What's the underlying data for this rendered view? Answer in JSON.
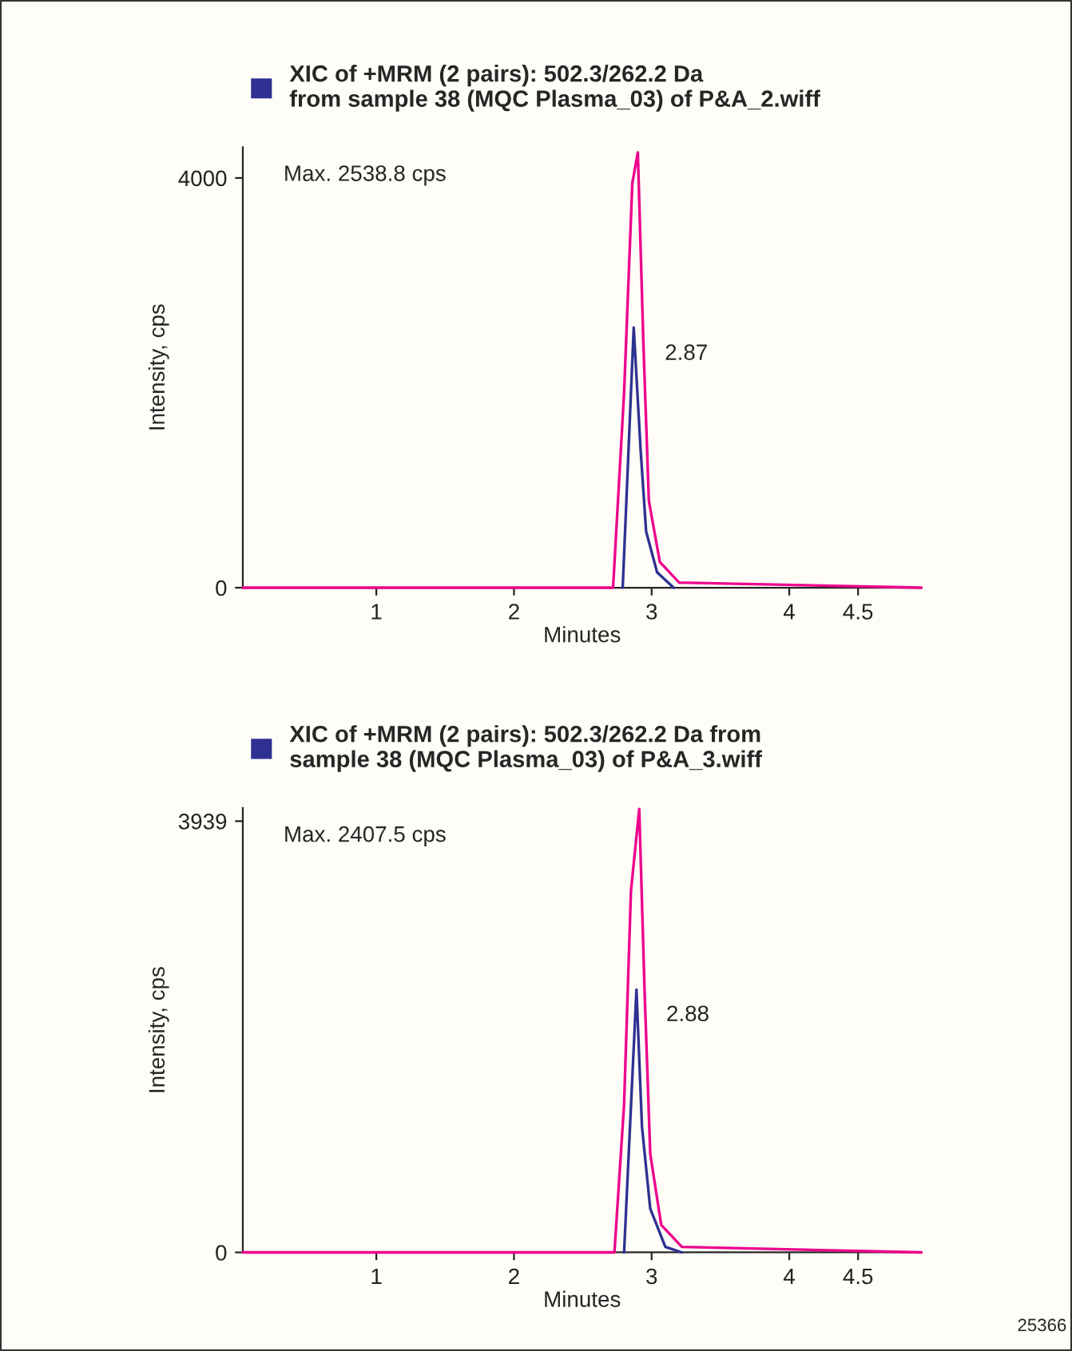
{
  "chart_data": [
    {
      "type": "line",
      "xlabel": "Minutes",
      "ylabel": "Intensity, cps",
      "xlim": [
        0.03,
        4.96
      ],
      "ylim": [
        0,
        4300
      ],
      "xticks": [
        1,
        2,
        3,
        4,
        4.5
      ],
      "yticks": [
        0,
        4000
      ],
      "legend": "top left",
      "grid": false,
      "marker": "none",
      "line_style": "solid",
      "annotations": [
        "Max. 2538.8 cps",
        {
          "text": "2.87",
          "x": 2.87,
          "y": 2540
        }
      ],
      "series": [
        {
          "name": "XIC of +MRM (2 pairs): 502.3/262.2 Da\nfrom sample 38 (MQC Plasma_03) of P&A_2.wiff",
          "color": "#2e3192",
          "x": [
            2.79,
            2.87,
            2.92,
            2.96,
            3.04,
            3.16
          ],
          "values": [
            0,
            2540,
            1350,
            550,
            150,
            0
          ]
        },
        {
          "color": "#ec008c",
          "x": [
            0.03,
            2.72,
            2.8,
            2.86,
            2.9,
            2.94,
            2.98,
            3.06,
            3.2,
            4.96
          ],
          "values": [
            0,
            0,
            1900,
            3950,
            4250,
            2400,
            850,
            250,
            50,
            0
          ]
        }
      ]
    },
    {
      "type": "line",
      "xlabel": "Minutes",
      "ylabel": "Intensity, cps",
      "xlim": [
        0.03,
        4.96
      ],
      "ylim": [
        0,
        4060
      ],
      "xticks": [
        1,
        2,
        3,
        4,
        4.5
      ],
      "yticks": [
        0,
        3939
      ],
      "legend": "top left",
      "grid": false,
      "marker": "none",
      "line_style": "solid",
      "annotations": [
        "Max. 2407.5 cps",
        {
          "text": "2.88",
          "x": 2.88,
          "y": 2408
        },
        "25366"
      ],
      "series": [
        {
          "name": "XIC of +MRM (2 pairs): 502.3/262.2 Da from\nsample 38 (MQC Plasma_03) of P&A_3.wiff",
          "color": "#2e3192",
          "x": [
            2.8,
            2.89,
            2.93,
            2.99,
            3.1,
            3.22
          ],
          "values": [
            0,
            2400,
            1150,
            400,
            50,
            0
          ]
        },
        {
          "color": "#ec008c",
          "x": [
            0.03,
            2.73,
            2.8,
            2.85,
            2.91,
            2.95,
            2.99,
            3.07,
            3.22,
            4.96
          ],
          "values": [
            0,
            0,
            1350,
            3300,
            4050,
            2350,
            900,
            250,
            50,
            0
          ]
        }
      ]
    }
  ]
}
